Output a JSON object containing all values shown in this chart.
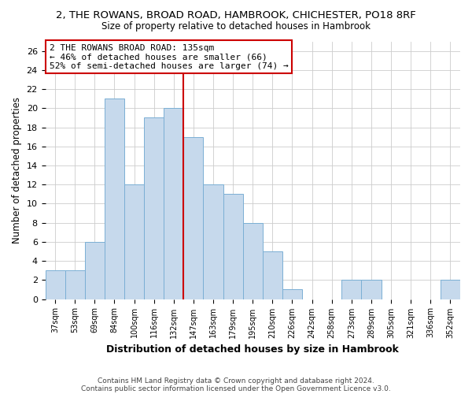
{
  "title": "2, THE ROWANS, BROAD ROAD, HAMBROOK, CHICHESTER, PO18 8RF",
  "subtitle": "Size of property relative to detached houses in Hambrook",
  "xlabel": "Distribution of detached houses by size in Hambrook",
  "ylabel": "Number of detached properties",
  "footer_line1": "Contains HM Land Registry data © Crown copyright and database right 2024.",
  "footer_line2": "Contains public sector information licensed under the Open Government Licence v3.0.",
  "bar_labels": [
    "37sqm",
    "53sqm",
    "69sqm",
    "84sqm",
    "100sqm",
    "116sqm",
    "132sqm",
    "147sqm",
    "163sqm",
    "179sqm",
    "195sqm",
    "210sqm",
    "226sqm",
    "242sqm",
    "258sqm",
    "273sqm",
    "289sqm",
    "305sqm",
    "321sqm",
    "336sqm",
    "352sqm"
  ],
  "bar_values": [
    3,
    3,
    6,
    21,
    12,
    19,
    20,
    17,
    12,
    11,
    8,
    5,
    1,
    0,
    0,
    2,
    2,
    0,
    0,
    0,
    2
  ],
  "bar_color": "#c6d9ec",
  "bar_edge_color": "#7bafd4",
  "vline_color": "#cc0000",
  "ylim": [
    0,
    27
  ],
  "yticks": [
    0,
    2,
    4,
    6,
    8,
    10,
    12,
    14,
    16,
    18,
    20,
    22,
    24,
    26
  ],
  "annotation_title": "2 THE ROWANS BROAD ROAD: 135sqm",
  "annotation_line2": "← 46% of detached houses are smaller (66)",
  "annotation_line3": "52% of semi-detached houses are larger (74) →",
  "annotation_box_color": "#ffffff",
  "annotation_box_edge": "#cc0000",
  "bg_color": "#ffffff",
  "grid_color": "#cccccc"
}
